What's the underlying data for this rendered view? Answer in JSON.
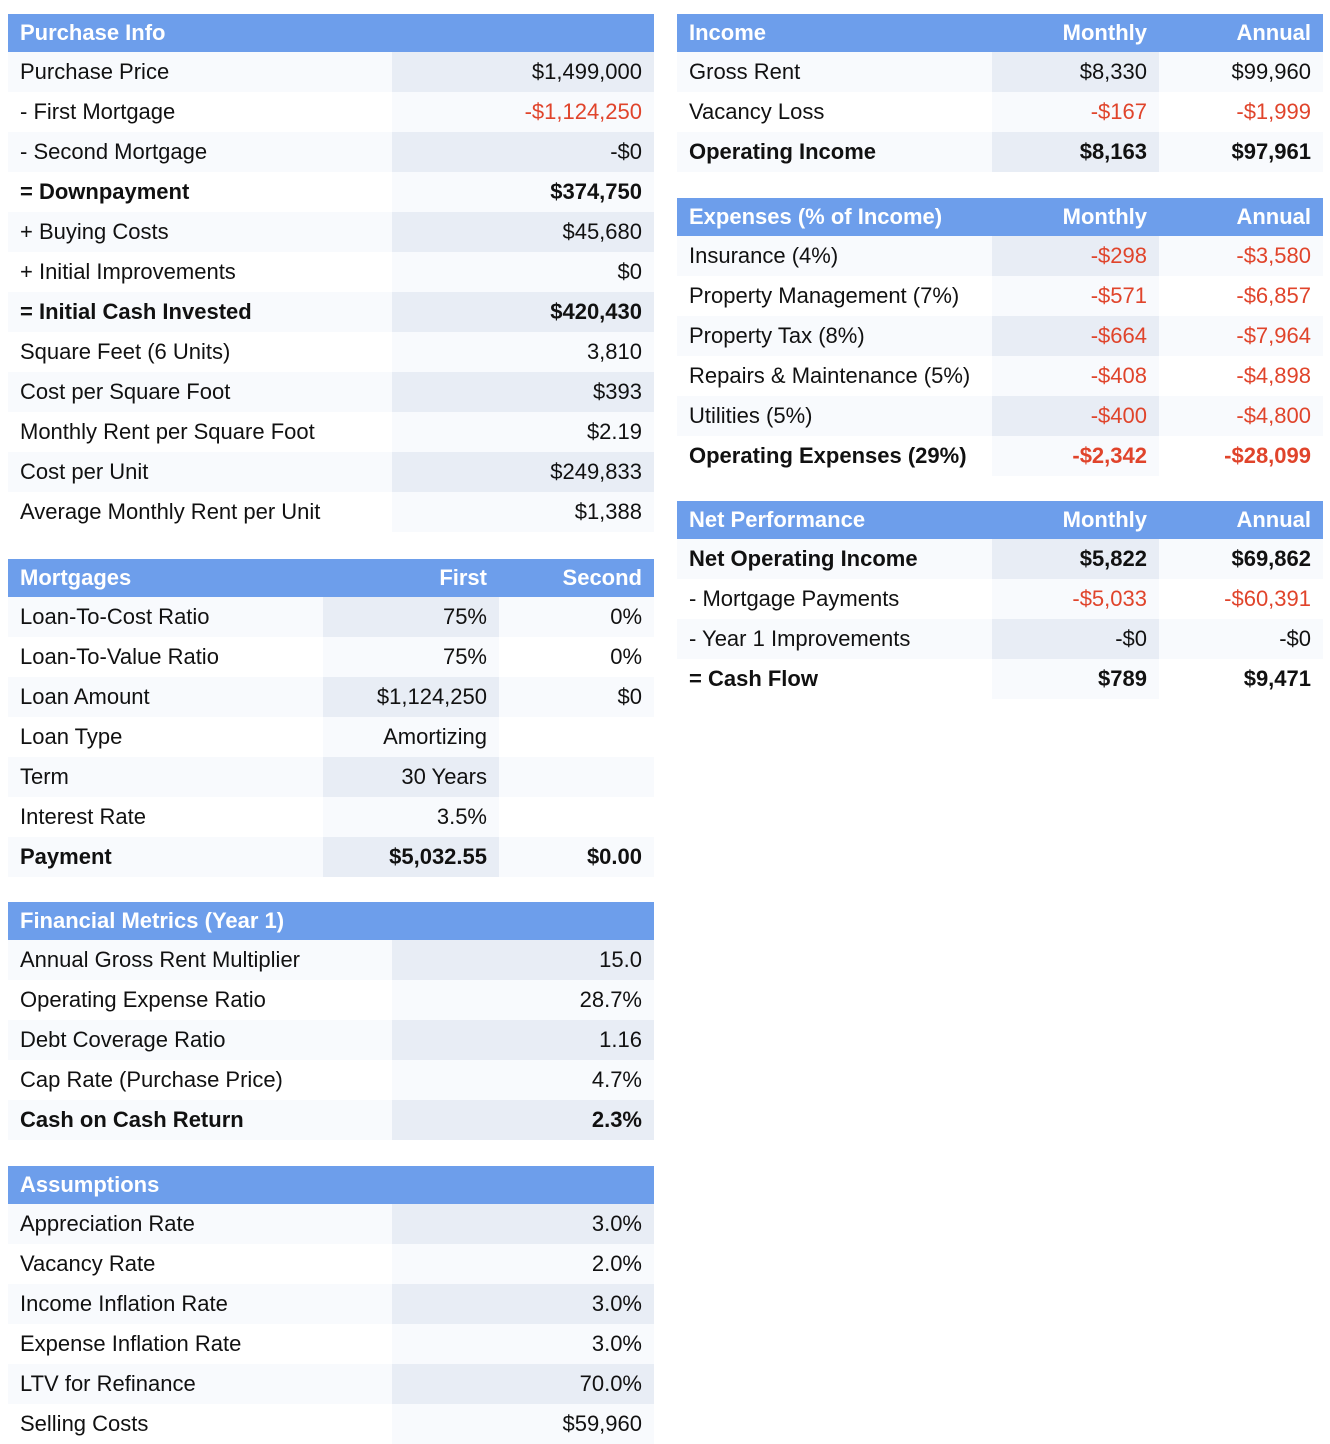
{
  "purchase_info": {
    "title": "Purchase Info",
    "rows": [
      {
        "label": "Purchase Price",
        "value": "$1,499,000",
        "bold": false,
        "neg": false
      },
      {
        "label": "- First Mortgage",
        "value": "-$1,124,250",
        "bold": false,
        "neg": true
      },
      {
        "label": "- Second Mortgage",
        "value": "-$0",
        "bold": false,
        "neg": false
      },
      {
        "label": "= Downpayment",
        "value": "$374,750",
        "bold": true,
        "neg": false
      },
      {
        "label": "+ Buying Costs",
        "value": "$45,680",
        "bold": false,
        "neg": false
      },
      {
        "label": "+ Initial Improvements",
        "value": "$0",
        "bold": false,
        "neg": false
      },
      {
        "label": "= Initial Cash Invested",
        "value": "$420,430",
        "bold": true,
        "neg": false
      },
      {
        "label": "Square Feet (6 Units)",
        "value": "3,810",
        "bold": false,
        "neg": false
      },
      {
        "label": "Cost per Square Foot",
        "value": "$393",
        "bold": false,
        "neg": false
      },
      {
        "label": "Monthly Rent per Square Foot",
        "value": "$2.19",
        "bold": false,
        "neg": false
      },
      {
        "label": "Cost per Unit",
        "value": "$249,833",
        "bold": false,
        "neg": false
      },
      {
        "label": "Average Monthly Rent per Unit",
        "value": "$1,388",
        "bold": false,
        "neg": false
      }
    ]
  },
  "mortgages": {
    "title": "Mortgages",
    "col1": "First",
    "col2": "Second",
    "rows": [
      {
        "label": "Loan-To-Cost Ratio",
        "first": "75%",
        "second": "0%",
        "bold": false
      },
      {
        "label": "Loan-To-Value Ratio",
        "first": "75%",
        "second": "0%",
        "bold": false
      },
      {
        "label": "Loan Amount",
        "first": "$1,124,250",
        "second": "$0",
        "bold": false
      },
      {
        "label": "Loan Type",
        "first": "Amortizing",
        "second": "",
        "bold": false
      },
      {
        "label": "Term",
        "first": "30 Years",
        "second": "",
        "bold": false
      },
      {
        "label": "Interest Rate",
        "first": "3.5%",
        "second": "",
        "bold": false
      },
      {
        "label": "Payment",
        "first": "$5,032.55",
        "second": "$0.00",
        "bold": true
      }
    ]
  },
  "financial_metrics": {
    "title": "Financial Metrics (Year 1)",
    "rows": [
      {
        "label": "Annual Gross Rent Multiplier",
        "value": "15.0",
        "bold": false,
        "neg": false
      },
      {
        "label": "Operating Expense Ratio",
        "value": "28.7%",
        "bold": false,
        "neg": false
      },
      {
        "label": "Debt Coverage Ratio",
        "value": "1.16",
        "bold": false,
        "neg": false
      },
      {
        "label": "Cap Rate (Purchase Price)",
        "value": "4.7%",
        "bold": false,
        "neg": false
      },
      {
        "label": "Cash on Cash Return",
        "value": "2.3%",
        "bold": true,
        "neg": false
      }
    ]
  },
  "assumptions": {
    "title": "Assumptions",
    "rows": [
      {
        "label": "Appreciation Rate",
        "value": "3.0%",
        "bold": false,
        "neg": false
      },
      {
        "label": "Vacancy Rate",
        "value": "2.0%",
        "bold": false,
        "neg": false
      },
      {
        "label": "Income Inflation Rate",
        "value": "3.0%",
        "bold": false,
        "neg": false
      },
      {
        "label": "Expense Inflation Rate",
        "value": "3.0%",
        "bold": false,
        "neg": false
      },
      {
        "label": "LTV for Refinance",
        "value": "70.0%",
        "bold": false,
        "neg": false
      },
      {
        "label": "Selling Costs",
        "value": "$59,960",
        "bold": false,
        "neg": false
      }
    ]
  },
  "income": {
    "title": "Income",
    "col1": "Monthly",
    "col2": "Annual",
    "rows": [
      {
        "label": "Gross Rent",
        "monthly": "$8,330",
        "annual": "$99,960",
        "bold": false,
        "neg": false
      },
      {
        "label": "Vacancy Loss",
        "monthly": "-$167",
        "annual": "-$1,999",
        "bold": false,
        "neg": true
      },
      {
        "label": "Operating Income",
        "monthly": "$8,163",
        "annual": "$97,961",
        "bold": true,
        "neg": false
      }
    ]
  },
  "expenses": {
    "title": "Expenses (% of Income)",
    "col1": "Monthly",
    "col2": "Annual",
    "rows": [
      {
        "label": "Insurance (4%)",
        "monthly": "-$298",
        "annual": "-$3,580",
        "bold": false,
        "neg": true
      },
      {
        "label": "Property Management (7%)",
        "monthly": "-$571",
        "annual": "-$6,857",
        "bold": false,
        "neg": true
      },
      {
        "label": "Property Tax (8%)",
        "monthly": "-$664",
        "annual": "-$7,964",
        "bold": false,
        "neg": true
      },
      {
        "label": "Repairs & Maintenance (5%)",
        "monthly": "-$408",
        "annual": "-$4,898",
        "bold": false,
        "neg": true
      },
      {
        "label": "Utilities (5%)",
        "monthly": "-$400",
        "annual": "-$4,800",
        "bold": false,
        "neg": true
      },
      {
        "label": "Operating Expenses (29%)",
        "monthly": "-$2,342",
        "annual": "-$28,099",
        "bold": true,
        "neg": true
      }
    ]
  },
  "net_performance": {
    "title": "Net Performance",
    "col1": "Monthly",
    "col2": "Annual",
    "rows": [
      {
        "label": "Net Operating Income",
        "monthly": "$5,822",
        "annual": "$69,862",
        "bold": true,
        "neg": false
      },
      {
        "label": "- Mortgage Payments",
        "monthly": "-$5,033",
        "annual": "-$60,391",
        "bold": false,
        "neg": true
      },
      {
        "label": "- Year 1 Improvements",
        "monthly": "-$0",
        "annual": "-$0",
        "bold": false,
        "neg": false
      },
      {
        "label": "= Cash Flow",
        "monthly": "$789",
        "annual": "$9,471",
        "bold": true,
        "neg": false
      }
    ]
  },
  "colors": {
    "header_bg": "#6d9eeb",
    "negative": "#e0442b"
  }
}
